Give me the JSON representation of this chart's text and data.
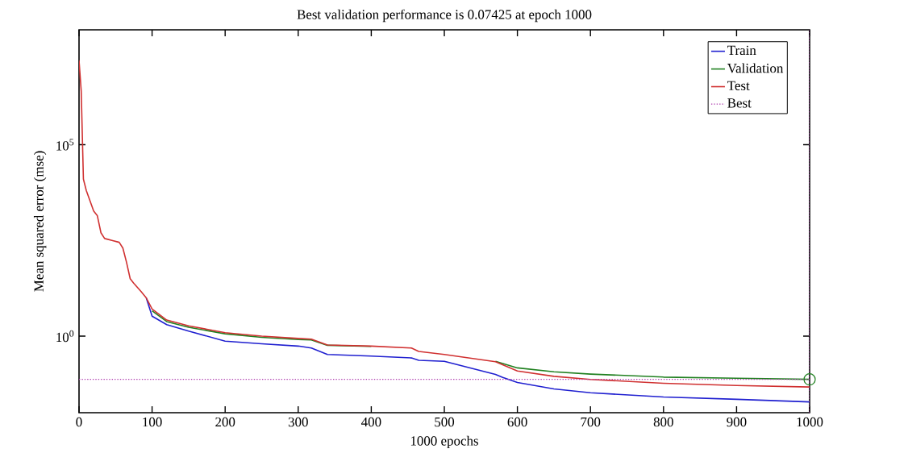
{
  "chart_data": {
    "type": "line",
    "title": "Best validation performance is 0.07425 at epoch 1000",
    "xlabel": "1000 epochs",
    "ylabel": "Mean squared error (mse)",
    "log": "y",
    "xlim": [
      0,
      1000
    ],
    "ylim": [
      0.01,
      100000000
    ],
    "xticks": [
      0,
      100,
      200,
      300,
      400,
      500,
      600,
      700,
      800,
      900,
      1000
    ],
    "yticks": [
      {
        "value": 1,
        "label": "10$^{0}$"
      },
      {
        "value": 100000,
        "label": "10$^{5}$"
      }
    ],
    "legend": "top right",
    "grid": false,
    "line_style": "solid",
    "marker": "none",
    "series": [
      {
        "name": "Train",
        "color": "#2020d0",
        "x": [
          92,
          100,
          120,
          150,
          200,
          250,
          300,
          318,
          340,
          400,
          455,
          465,
          500,
          570,
          580,
          600,
          650,
          700,
          800,
          900,
          1000
        ],
        "values": [
          10.0,
          3.31,
          2.0,
          1.35,
          0.741,
          0.631,
          0.55,
          0.49,
          0.331,
          0.302,
          0.269,
          0.234,
          0.219,
          0.1,
          0.0832,
          0.0617,
          0.0417,
          0.0331,
          0.0257,
          0.0224,
          0.0191
        ]
      },
      {
        "name": "Validation",
        "color": "#208020",
        "x": [
          100,
          120,
          150,
          200,
          250,
          300,
          318,
          340,
          400,
          455,
          465,
          500,
          570,
          600,
          650,
          700,
          800,
          900,
          1000
        ],
        "values": [
          4.57,
          2.4,
          1.7,
          1.15,
          0.933,
          0.813,
          0.794,
          0.575,
          0.537,
          null,
          null,
          null,
          0.219,
          0.148,
          0.117,
          0.102,
          0.0851,
          0.0794,
          0.07425
        ]
      },
      {
        "name": "Test",
        "color": "#d03030",
        "x": [
          0,
          3,
          6,
          10,
          20,
          25,
          30,
          35,
          45,
          55,
          60,
          65,
          70,
          75,
          85,
          92,
          100,
          120,
          150,
          200,
          250,
          300,
          318,
          340,
          400,
          455,
          465,
          500,
          570,
          600,
          650,
          700,
          800,
          900,
          1000
        ],
        "values": [
          16000000,
          2500000,
          12600,
          6310,
          1860,
          1410,
          501,
          355,
          316,
          282,
          200,
          85.1,
          31.6,
          24.0,
          14.5,
          10.0,
          5.13,
          2.63,
          1.86,
          1.23,
          1.0,
          0.871,
          0.832,
          0.589,
          0.55,
          0.49,
          0.398,
          0.331,
          0.214,
          0.123,
          0.0891,
          0.0741,
          0.0589,
          0.0513,
          0.0468
        ]
      },
      {
        "type": "scatter",
        "marker": "circle",
        "color": "#208020",
        "x": [
          1000
        ],
        "values": [
          0.07425
        ]
      }
    ],
    "ref_lines": [
      {
        "axis": "y",
        "value": 0.07425,
        "label": "Best",
        "color": "#b040b0",
        "line_style": "dotted"
      },
      {
        "axis": "x",
        "value": 1000,
        "color": "#b040b0",
        "line_style": "dotted"
      }
    ]
  }
}
